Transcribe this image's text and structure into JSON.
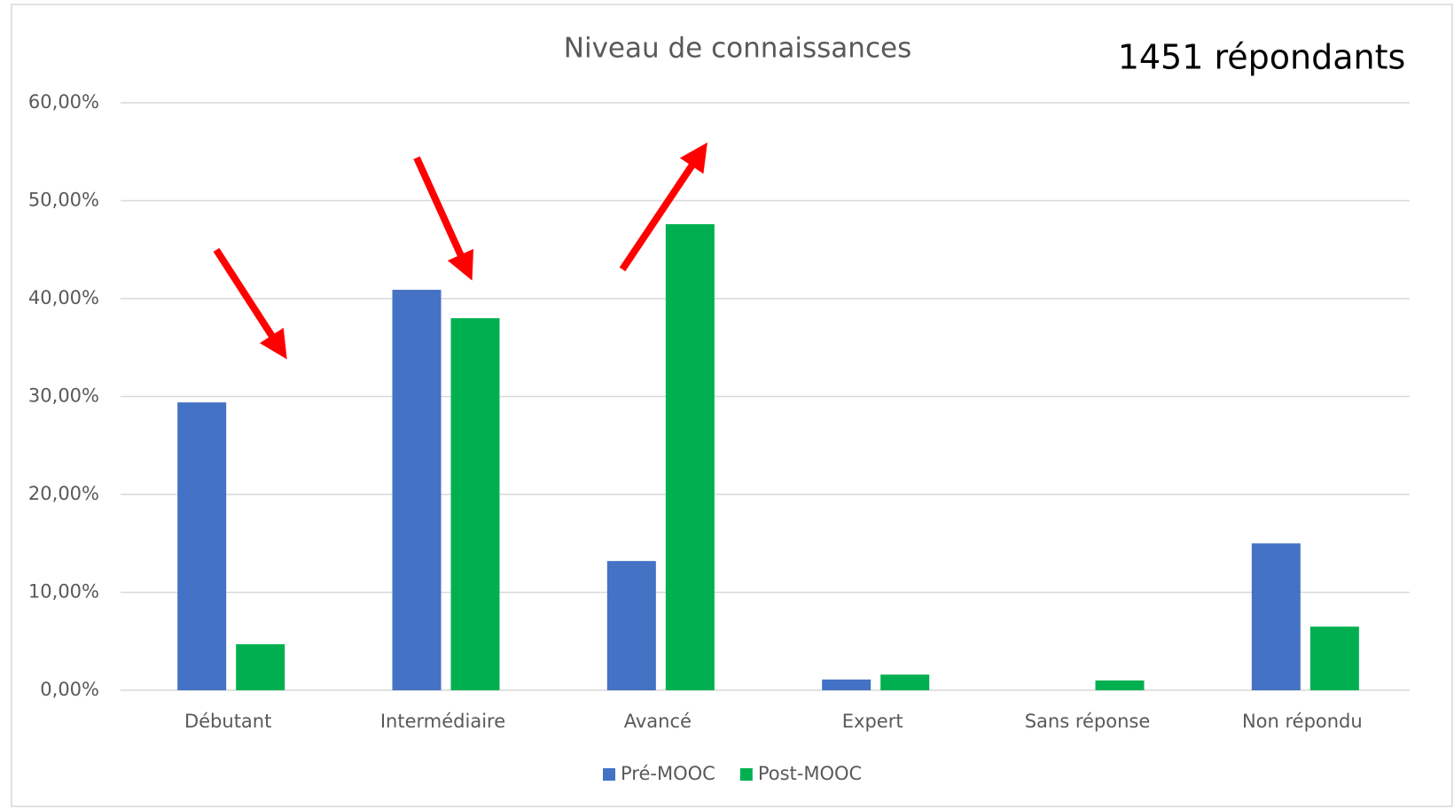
{
  "chart_data": {
    "type": "bar",
    "title": "Niveau de connaissances",
    "annotation": "1451 répondants",
    "categories": [
      "Débutant",
      "Intermédiaire",
      "Avancé",
      "Expert",
      "Sans réponse",
      "Non répondu"
    ],
    "series": [
      {
        "name": "Pré-MOOC",
        "color": "#4472c4",
        "values": [
          29.4,
          40.9,
          13.2,
          1.1,
          0,
          15.0
        ]
      },
      {
        "name": "Post-MOOC",
        "color": "#00b050",
        "values": [
          4.7,
          38.0,
          47.6,
          1.6,
          1.0,
          6.5
        ]
      }
    ],
    "ylim": [
      0,
      60
    ],
    "yticks": [
      {
        "value": 0,
        "label": "0,00%"
      },
      {
        "value": 10,
        "label": "10,00%"
      },
      {
        "value": 20,
        "label": "20,00%"
      },
      {
        "value": 30,
        "label": "30,00%"
      },
      {
        "value": 40,
        "label": "40,00%"
      },
      {
        "value": 50,
        "label": "50,00%"
      },
      {
        "value": 60,
        "label": "60,00%"
      }
    ],
    "grid": true,
    "legend": "bottom"
  }
}
